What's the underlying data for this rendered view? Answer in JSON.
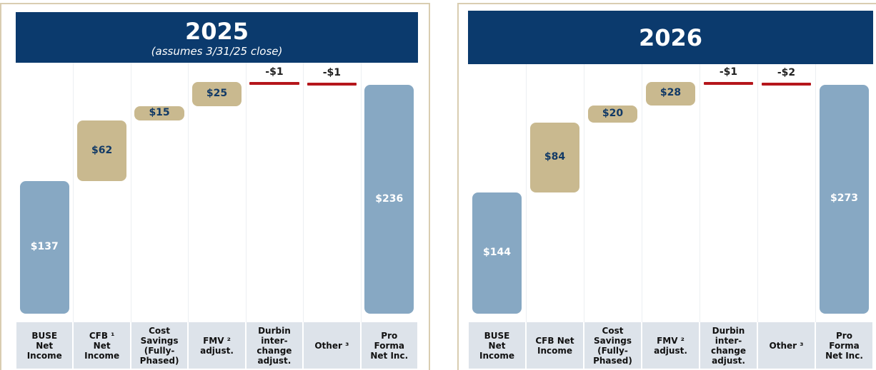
{
  "chart_data": [
    {
      "type": "waterfall",
      "title": "2025",
      "subtitle": "(assumes 3/31/25 close)",
      "categories": [
        "BUSE Net Income",
        "CFB ¹ Net Income",
        "Cost Savings (Fully-Phased)",
        "FMV ² adjust.",
        "Durbin inter-change adjust.",
        "Other ³",
        "Pro Forma Net Inc."
      ],
      "values": [
        137,
        62,
        15,
        25,
        -1,
        -1,
        236
      ],
      "value_labels": [
        "$137",
        "$62",
        "$15",
        "$25",
        "-$1",
        "-$1",
        "$236"
      ],
      "measure": [
        "total",
        "relative",
        "relative",
        "relative",
        "relative",
        "relative",
        "total"
      ],
      "colors": {
        "total": "#87a8c3",
        "increase": "#c9b98f",
        "decrease": "#b5161b"
      }
    },
    {
      "type": "waterfall",
      "title": "2026",
      "categories": [
        "BUSE Net Income",
        "CFB Net Income",
        "Cost Savings (Fully-Phased)",
        "FMV ² adjust.",
        "Durbin inter-change adjust.",
        "Other ³",
        "Pro Forma Net Inc."
      ],
      "values": [
        144,
        84,
        20,
        28,
        -1,
        -2,
        273
      ],
      "value_labels": [
        "$144",
        "$84",
        "$20",
        "$28",
        "-$1",
        "-$2",
        "$273"
      ],
      "measure": [
        "total",
        "relative",
        "relative",
        "relative",
        "relative",
        "relative",
        "total"
      ],
      "colors": {
        "total": "#87a8c3",
        "increase": "#c9b98f",
        "decrease": "#b5161b"
      }
    }
  ]
}
